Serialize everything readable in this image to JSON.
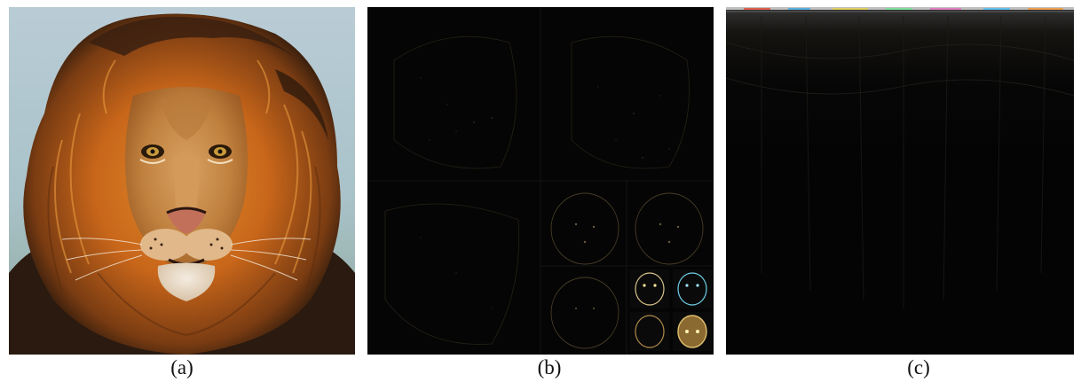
{
  "figure": {
    "panels": [
      {
        "caption": "(a)",
        "content": "lion-photograph"
      },
      {
        "caption": "(b)",
        "content": "wavelet-decomposition-coefficients"
      },
      {
        "caption": "(c)",
        "content": "transform-coefficients-noise"
      }
    ]
  },
  "colors": {
    "background": "#ffffff",
    "panel_dark": "#050505",
    "mane_orange": "#c8661a",
    "mane_dark": "#3a2010",
    "sky_blue": "#a9c4cf",
    "coeff_highlight": "#d9c38a",
    "coeff_cyan": "#6fd0e8"
  }
}
